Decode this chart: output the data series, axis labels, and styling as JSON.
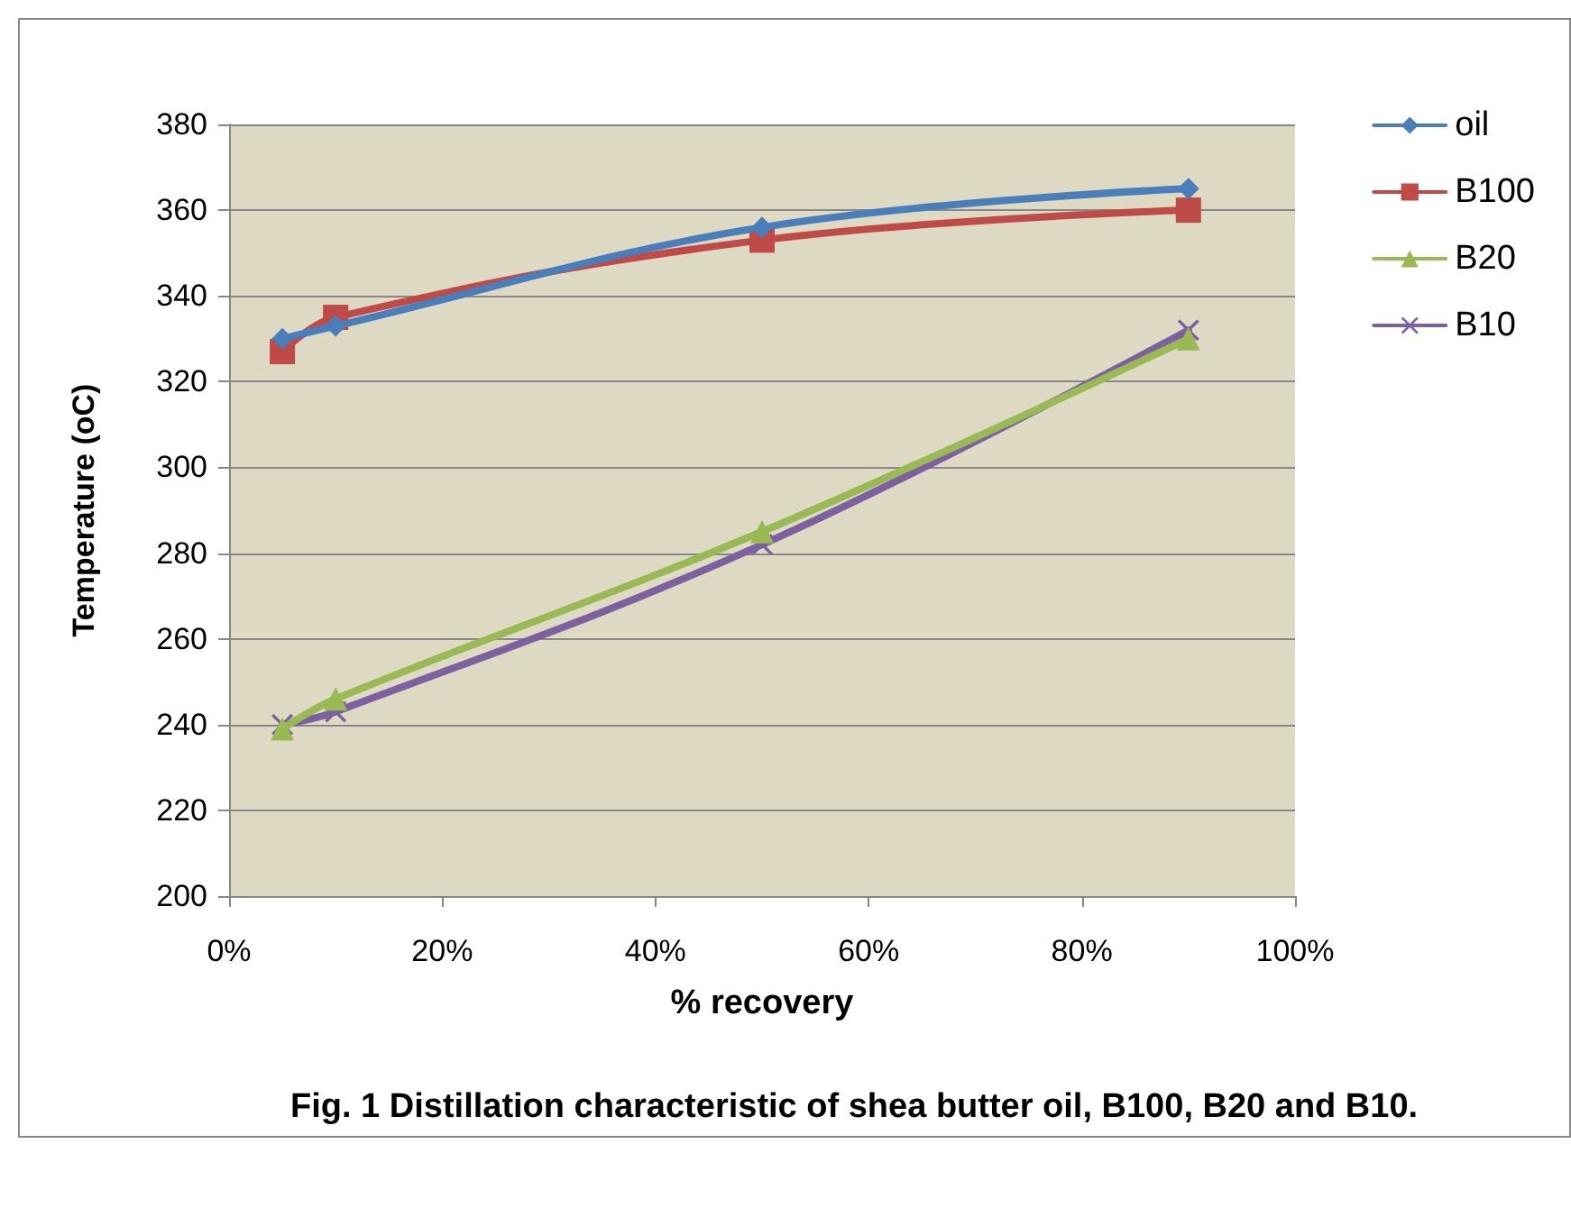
{
  "chart_data": {
    "type": "line",
    "xlabel": "% recovery",
    "ylabel": "Temperature (oC)",
    "x": [
      5,
      10,
      50,
      90
    ],
    "series": [
      {
        "name": "oil",
        "color": "#4a7ebb",
        "marker": "diamond",
        "values": [
          330,
          333,
          356,
          365
        ]
      },
      {
        "name": "B100",
        "color": "#be4b48",
        "marker": "square",
        "values": [
          327,
          335,
          353,
          360
        ]
      },
      {
        "name": "B20",
        "color": "#98b954",
        "marker": "triangle",
        "values": [
          239,
          246,
          285,
          330
        ]
      },
      {
        "name": "B10",
        "color": "#7d60a0",
        "marker": "cross",
        "values": [
          240,
          243,
          282,
          332
        ]
      }
    ],
    "xlim": [
      0,
      100
    ],
    "xticks": [
      {
        "value": 0,
        "label": "0%"
      },
      {
        "value": 20,
        "label": "20%"
      },
      {
        "value": 40,
        "label": "40%"
      },
      {
        "value": 60,
        "label": "60%"
      },
      {
        "value": 80,
        "label": "80%"
      },
      {
        "value": 100,
        "label": "100%"
      }
    ],
    "ylim": [
      200,
      380
    ],
    "yticks": [
      200,
      220,
      240,
      260,
      280,
      300,
      320,
      340,
      360,
      380
    ],
    "grid": "y",
    "legend": "right",
    "line_style": "solid",
    "annotations": [
      "Fig. 1 Distillation characteristic of shea butter oil, B100, B20 and B10."
    ]
  }
}
